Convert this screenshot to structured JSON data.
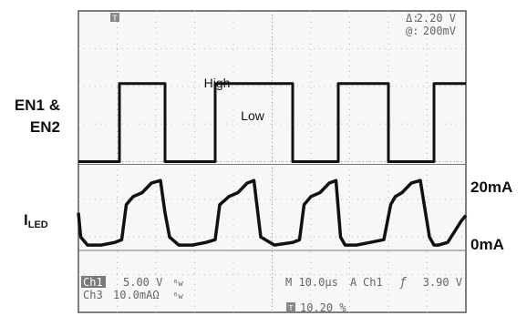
{
  "chart_data": {
    "type": "line",
    "title": "",
    "grid": true,
    "trigger_marker": "T",
    "cursor_readout": {
      "delta_label": "Δ:",
      "delta_value": "2.20 V",
      "at_label": "@:",
      "at_value": "200mV"
    },
    "left_labels": {
      "en_line1": "EN1 &",
      "en_line2": "EN2",
      "iled_main": "I",
      "iled_sub": "LED"
    },
    "right_labels": {
      "top": "20mA",
      "bottom": "0mA"
    },
    "annotations": {
      "high": "High",
      "low": "Low"
    },
    "status": {
      "ch1_tag": "Ch1",
      "ch1_scale": "5.00 V",
      "ch1_bw": "ᴮw",
      "ch3_tag": "Ch3",
      "ch3_scale": "10.0mAΩ",
      "ch3_bw": "ᴮw",
      "timebase": "M 10.0µs",
      "acq_mode": "A",
      "trig_source": "Ch1",
      "trig_slope": "ƒ",
      "trig_level": "3.90 V",
      "trig_marker": "T",
      "trig_position": "10.20 %"
    },
    "series": [
      {
        "name": "EN1 & EN2",
        "channel": "Ch1",
        "x_us": [
          0,
          9,
          9,
          19,
          19,
          30,
          30,
          47,
          47,
          57,
          57,
          68,
          68,
          78,
          78,
          85
        ],
        "y_div": [
          -1,
          -1,
          1.9,
          1.9,
          -1,
          -1,
          1.9,
          1.9,
          -1,
          -1,
          1.9,
          1.9,
          -1,
          -1,
          1.9,
          1.9
        ]
      },
      {
        "name": "I_LED",
        "channel": "Ch3",
        "x_us": [
          0,
          0.5,
          2,
          5,
          8,
          9.5,
          10.5,
          12,
          14,
          16,
          18,
          19,
          20,
          22,
          25,
          28,
          30,
          31,
          33,
          35,
          37,
          38.5,
          40,
          43,
          47,
          48.5,
          49.5,
          51,
          53,
          55,
          56.5,
          57.5,
          58.5,
          61,
          64,
          67,
          68.5,
          69.5,
          71,
          73,
          75,
          77,
          78,
          79,
          81,
          84,
          85
        ],
        "y_div": [
          -2.9,
          -3.8,
          -4.1,
          -4.1,
          -4.0,
          -3.9,
          -2.6,
          -2.3,
          -2.15,
          -1.8,
          -1.7,
          -2.9,
          -3.8,
          -4.1,
          -4.1,
          -4.0,
          -3.9,
          -2.6,
          -2.3,
          -2.15,
          -1.8,
          -1.7,
          -3.8,
          -4.1,
          -4.0,
          -3.9,
          -2.6,
          -2.3,
          -2.15,
          -1.8,
          -1.7,
          -3.8,
          -4.1,
          -4.1,
          -4.0,
          -3.9,
          -2.6,
          -2.3,
          -2.15,
          -1.8,
          -1.7,
          -3.8,
          -4.1,
          -4.1,
          -4.0,
          -3.2,
          -3.0
        ]
      }
    ],
    "reference_lines_div": [
      -1.1,
      -4.3
    ],
    "xlim_us": [
      0,
      85
    ],
    "ylim_div": [
      -6.6,
      4.6
    ]
  }
}
